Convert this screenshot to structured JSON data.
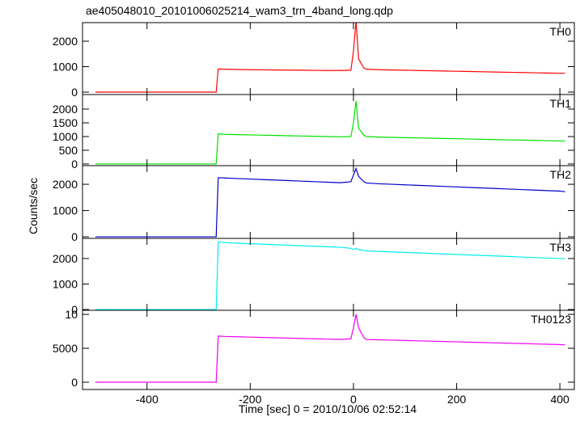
{
  "chart_data": [
    {
      "type": "line",
      "title": "ae405048010_20101006025214_wam3_trn_4band_long.qdp",
      "x": [
        -500,
        -475,
        -450,
        -425,
        -400,
        -375,
        -350,
        -325,
        -300,
        -275,
        -266,
        -262,
        -250,
        -225,
        -200,
        -175,
        -150,
        -125,
        -100,
        -75,
        -50,
        -25,
        -5,
        0,
        5,
        10,
        20,
        25,
        50,
        75,
        100,
        125,
        150,
        175,
        200,
        225,
        250,
        275,
        300,
        325,
        350,
        375,
        400,
        410
      ],
      "series": [
        {
          "name": "TH0",
          "color": "#ff0000",
          "values": [
            0,
            0,
            0,
            0,
            0,
            0,
            0,
            0,
            0,
            0,
            0,
            910,
            900,
            890,
            880,
            875,
            870,
            865,
            860,
            855,
            850,
            850,
            860,
            1600,
            2800,
            1300,
            950,
            900,
            880,
            870,
            860,
            850,
            840,
            830,
            820,
            810,
            800,
            790,
            780,
            770,
            760,
            750,
            740,
            740
          ]
        }
      ],
      "xlim": [
        -525,
        428
      ],
      "ylim": [
        -95,
        2730
      ],
      "yticks": [
        0,
        1000,
        2000
      ]
    },
    {
      "type": "line",
      "x": [
        -500,
        -475,
        -450,
        -425,
        -400,
        -375,
        -350,
        -325,
        -300,
        -275,
        -266,
        -262,
        -250,
        -225,
        -200,
        -175,
        -150,
        -125,
        -100,
        -75,
        -50,
        -25,
        -5,
        0,
        5,
        10,
        20,
        25,
        50,
        75,
        100,
        125,
        150,
        175,
        200,
        225,
        250,
        275,
        300,
        325,
        350,
        375,
        400,
        410
      ],
      "series": [
        {
          "name": "TH1",
          "color": "#00e000",
          "values": [
            0,
            0,
            0,
            0,
            0,
            0,
            0,
            0,
            0,
            0,
            0,
            1100,
            1080,
            1070,
            1060,
            1050,
            1040,
            1030,
            1020,
            1010,
            1000,
            990,
            1000,
            1500,
            2300,
            1300,
            1050,
            1000,
            980,
            970,
            960,
            950,
            940,
            930,
            920,
            910,
            900,
            890,
            880,
            870,
            860,
            850,
            840,
            840
          ]
        }
      ],
      "xlim": [
        -525,
        428
      ],
      "ylim": [
        -60,
        2530
      ],
      "yticks": [
        0,
        500,
        1000,
        1500,
        2000
      ]
    },
    {
      "type": "line",
      "y_label": "Counts/sec",
      "x": [
        -500,
        -475,
        -450,
        -425,
        -400,
        -375,
        -350,
        -325,
        -300,
        -275,
        -266,
        -262,
        -250,
        -225,
        -200,
        -175,
        -150,
        -125,
        -100,
        -75,
        -50,
        -25,
        -5,
        0,
        5,
        10,
        20,
        25,
        50,
        75,
        100,
        125,
        150,
        175,
        200,
        225,
        250,
        275,
        300,
        325,
        350,
        375,
        400,
        410
      ],
      "series": [
        {
          "name": "TH2",
          "color": "#0000cc",
          "values": [
            0,
            0,
            0,
            0,
            0,
            0,
            0,
            0,
            0,
            0,
            0,
            2250,
            2240,
            2220,
            2200,
            2180,
            2160,
            2140,
            2120,
            2100,
            2080,
            2060,
            2100,
            2350,
            2600,
            2300,
            2100,
            2050,
            2020,
            2000,
            1980,
            1960,
            1940,
            1920,
            1900,
            1880,
            1860,
            1840,
            1820,
            1800,
            1780,
            1760,
            1740,
            1720
          ]
        }
      ],
      "xlim": [
        -525,
        428
      ],
      "ylim": [
        -60,
        2710
      ],
      "yticks": [
        0,
        1000,
        2000
      ]
    },
    {
      "type": "line",
      "x": [
        -500,
        -475,
        -450,
        -425,
        -400,
        -375,
        -350,
        -325,
        -300,
        -275,
        -266,
        -262,
        -250,
        -225,
        -200,
        -175,
        -150,
        -125,
        -100,
        -75,
        -50,
        -25,
        -5,
        0,
        5,
        10,
        20,
        25,
        50,
        75,
        100,
        125,
        150,
        175,
        200,
        225,
        250,
        275,
        300,
        325,
        350,
        375,
        400,
        410
      ],
      "series": [
        {
          "name": "TH3",
          "color": "#00eeee",
          "values": [
            0,
            0,
            0,
            0,
            0,
            0,
            0,
            0,
            0,
            0,
            0,
            2650,
            2630,
            2600,
            2580,
            2560,
            2540,
            2520,
            2500,
            2480,
            2460,
            2440,
            2400,
            2350,
            2400,
            2350,
            2320,
            2300,
            2280,
            2260,
            2240,
            2220,
            2200,
            2180,
            2160,
            2140,
            2120,
            2100,
            2080,
            2060,
            2040,
            2020,
            2000,
            2000
          ]
        }
      ],
      "xlim": [
        -525,
        428
      ],
      "ylim": [
        -30,
        2790
      ],
      "yticks": [
        0,
        1000,
        2000
      ]
    },
    {
      "type": "line",
      "x_label": "Time [sec] 0 = 2010/10/06 02:52:14",
      "x": [
        -500,
        -475,
        -450,
        -425,
        -400,
        -375,
        -350,
        -325,
        -300,
        -275,
        -266,
        -262,
        -250,
        -225,
        -200,
        -175,
        -150,
        -125,
        -100,
        -75,
        -50,
        -25,
        -5,
        0,
        5,
        10,
        20,
        25,
        50,
        75,
        100,
        125,
        150,
        175,
        200,
        225,
        250,
        275,
        300,
        325,
        350,
        375,
        400,
        410
      ],
      "series": [
        {
          "name": "TH0123",
          "color": "#ee00ee",
          "values": [
            0,
            0,
            0,
            0,
            0,
            0,
            0,
            0,
            0,
            0,
            0,
            6800,
            6750,
            6700,
            6650,
            6600,
            6550,
            6500,
            6450,
            6400,
            6350,
            6300,
            6400,
            8000,
            10000,
            8000,
            6600,
            6300,
            6250,
            6200,
            6150,
            6100,
            6050,
            6000,
            5950,
            5900,
            5850,
            5800,
            5750,
            5700,
            5650,
            5600,
            5550,
            5500
          ]
        }
      ],
      "xlim": [
        -525,
        428
      ],
      "ylim": [
        -1070,
        10600
      ],
      "yticks": [
        0,
        5000,
        {
          "value": 10000,
          "label": "10"
        }
      ],
      "xticks": [
        -400,
        -200,
        0,
        200,
        400
      ]
    }
  ]
}
